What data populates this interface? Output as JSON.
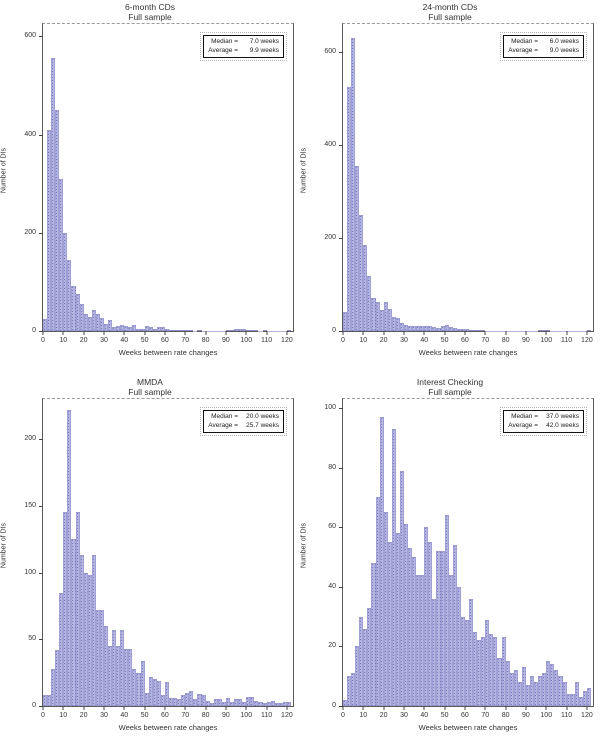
{
  "style": {
    "bar_fill": "#b4b4e0",
    "bar_dot": "#7c7cc6",
    "axis_color": "#444444",
    "text_color": "#333333"
  },
  "chart_data": [
    {
      "type": "bar",
      "title": "6-month CDs",
      "subtitle": "Full sample",
      "xlabel": "Weeks between rate changes",
      "ylabel": "Number of DIs",
      "legend": {
        "rows": [
          {
            "label": "Median =",
            "value": "7.0 weeks"
          },
          {
            "label": "Average =",
            "value": "9.9 weeks"
          }
        ]
      },
      "bin_width": 2,
      "bin_start": 0,
      "xlim": [
        0,
        123
      ],
      "ylim": [
        0,
        625
      ],
      "xticks": [
        0,
        10,
        20,
        30,
        40,
        50,
        60,
        70,
        80,
        90,
        100,
        110,
        120
      ],
      "yticks": [
        0,
        200,
        400,
        600
      ],
      "values": [
        25,
        410,
        555,
        450,
        310,
        200,
        145,
        92,
        75,
        55,
        35,
        28,
        42,
        34,
        26,
        15,
        22,
        8,
        10,
        13,
        10,
        8,
        13,
        5,
        5,
        11,
        8,
        5,
        8,
        8,
        4,
        2,
        2,
        3,
        2,
        2,
        2,
        1,
        2,
        1,
        1,
        1,
        1,
        1,
        1,
        2,
        2,
        4,
        5,
        4,
        2,
        2,
        2,
        1,
        2,
        1,
        1,
        1,
        1,
        1,
        2
      ]
    },
    {
      "type": "bar",
      "title": "24-month CDs",
      "subtitle": "Full sample",
      "xlabel": "Weeks between rate changes",
      "ylabel": "Number of DIs",
      "legend": {
        "rows": [
          {
            "label": "Median =",
            "value": "6.0 weeks"
          },
          {
            "label": "Average =",
            "value": "9.0 weeks"
          }
        ]
      },
      "bin_width": 2,
      "bin_start": 0,
      "xlim": [
        0,
        123
      ],
      "ylim": [
        0,
        660
      ],
      "xticks": [
        0,
        10,
        20,
        30,
        40,
        50,
        60,
        70,
        80,
        90,
        100,
        110,
        120
      ],
      "yticks": [
        0,
        200,
        400,
        600
      ],
      "values": [
        40,
        525,
        630,
        355,
        250,
        185,
        118,
        70,
        62,
        45,
        62,
        48,
        30,
        28,
        18,
        12,
        10,
        11,
        10,
        11,
        10,
        10,
        8,
        6,
        10,
        12,
        8,
        6,
        5,
        4,
        5,
        3,
        3,
        3,
        2,
        1,
        1,
        1,
        1,
        1,
        1,
        1,
        1,
        1,
        1,
        1,
        1,
        1,
        2,
        3,
        2,
        1,
        1,
        1,
        1,
        1,
        1,
        1,
        1,
        1,
        2
      ]
    },
    {
      "type": "bar",
      "title": "MMDA",
      "subtitle": "Full sample",
      "xlabel": "Weeks between rate changes",
      "ylabel": "Number of DIs",
      "legend": {
        "rows": [
          {
            "label": "Median =",
            "value": "20.0 weeks"
          },
          {
            "label": "Average =",
            "value": "25.7 weeks"
          }
        ]
      },
      "bin_width": 2,
      "bin_start": 0,
      "xlim": [
        0,
        123
      ],
      "ylim": [
        0,
        230
      ],
      "xticks": [
        0,
        10,
        20,
        30,
        40,
        50,
        60,
        70,
        80,
        90,
        100,
        110,
        120
      ],
      "yticks": [
        0,
        50,
        100,
        150,
        200
      ],
      "values": [
        8,
        8,
        28,
        42,
        85,
        145,
        222,
        125,
        145,
        113,
        100,
        98,
        113,
        72,
        72,
        60,
        45,
        57,
        45,
        57,
        43,
        43,
        28,
        25,
        34,
        10,
        22,
        20,
        19,
        8,
        18,
        6,
        6,
        5,
        8,
        10,
        11,
        5,
        9,
        8,
        4,
        2,
        5,
        5,
        3,
        6,
        3,
        5,
        5,
        3,
        7,
        7,
        4,
        3,
        2,
        3,
        4,
        2,
        2,
        3,
        3
      ]
    },
    {
      "type": "bar",
      "title": "Interest Checking",
      "subtitle": "Full sample",
      "xlabel": "Weeks between rate changes",
      "ylabel": "Number of DIs",
      "legend": {
        "rows": [
          {
            "label": "Median =",
            "value": "37.0 weeks"
          },
          {
            "label": "Average =",
            "value": "42.0 weeks"
          }
        ]
      },
      "bin_width": 2,
      "bin_start": 0,
      "xlim": [
        0,
        123
      ],
      "ylim": [
        0,
        103
      ],
      "xticks": [
        0,
        10,
        20,
        30,
        40,
        50,
        60,
        70,
        80,
        90,
        100,
        110,
        120
      ],
      "yticks": [
        0,
        20,
        40,
        60,
        80,
        100
      ],
      "values": [
        2,
        10,
        11,
        20,
        30,
        26,
        33,
        48,
        70,
        97,
        65,
        55,
        93,
        58,
        79,
        61,
        53,
        50,
        44,
        44,
        60,
        55,
        36,
        52,
        52,
        64,
        44,
        54,
        40,
        30,
        29,
        36,
        25,
        22,
        23,
        29,
        24,
        23,
        16,
        23,
        15,
        11,
        12,
        8,
        13,
        7,
        10,
        8,
        10,
        11,
        15,
        14,
        12,
        10,
        8,
        4,
        4,
        8,
        3,
        5,
        6
      ]
    }
  ]
}
